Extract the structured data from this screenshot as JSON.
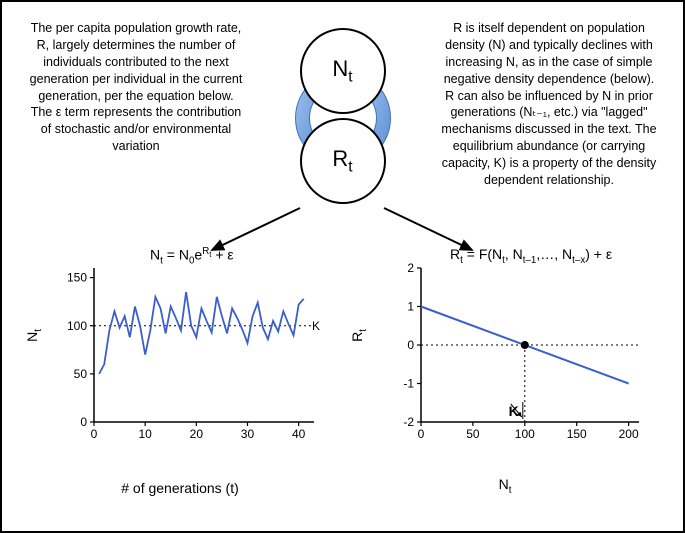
{
  "colors": {
    "line_blue": "#3a5fcd",
    "arrow_blue": "#5c8fd6",
    "arrow_blue_light": "#9cc0eb",
    "text": "#000000",
    "axis": "#000000",
    "dotted": "#000000",
    "bg": "#ffffff"
  },
  "left_text": "The per capita population growth rate, R, largely determines the number of individuals contributed to the next generation per individual in the current generation, per the equation below. The ε term represents the contribution of stochastic and/or environmental variation",
  "right_text": "R is itself dependent on population density (N) and typically declines with increasing N, as in the case of simple negative density dependence (below). R can also be influenced by N in prior generations (Nₜ₋₁, etc.) via \"lagged\" mechanisms discussed in the text. The equilibrium abundance (or carrying capacity, K) is a property of the density dependent relationship.",
  "diagram": {
    "top_label_main": "N",
    "top_label_sub": "t",
    "bot_label_main": "R",
    "bot_label_sub": "t"
  },
  "left_chart": {
    "type": "line",
    "equation_parts": {
      "lhs": "N",
      "lhs_sub": "t",
      "eq": " = N",
      "z": "0",
      "e": "e",
      "exp": "R",
      "exp_sub": "t",
      "tail": " + ε"
    },
    "ylabel_main": "N",
    "ylabel_sub": "t",
    "xlabel": "# of generations (t)",
    "xlim": [
      0,
      43
    ],
    "ylim": [
      0,
      160
    ],
    "xticks": [
      0,
      10,
      20,
      30,
      40
    ],
    "yticks": [
      0,
      50,
      100,
      150
    ],
    "K_line": 100,
    "K_label": "K",
    "line_width": 1.8,
    "series_color": "#3a5fcd",
    "data": [
      [
        1,
        50
      ],
      [
        2,
        60
      ],
      [
        3,
        95
      ],
      [
        4,
        115
      ],
      [
        5,
        98
      ],
      [
        6,
        110
      ],
      [
        7,
        88
      ],
      [
        8,
        120
      ],
      [
        9,
        100
      ],
      [
        10,
        70
      ],
      [
        11,
        95
      ],
      [
        12,
        130
      ],
      [
        13,
        118
      ],
      [
        14,
        92
      ],
      [
        15,
        120
      ],
      [
        16,
        108
      ],
      [
        17,
        95
      ],
      [
        18,
        135
      ],
      [
        19,
        100
      ],
      [
        20,
        88
      ],
      [
        21,
        118
      ],
      [
        22,
        105
      ],
      [
        23,
        93
      ],
      [
        24,
        130
      ],
      [
        25,
        110
      ],
      [
        26,
        92
      ],
      [
        27,
        118
      ],
      [
        28,
        108
      ],
      [
        29,
        96
      ],
      [
        30,
        82
      ],
      [
        31,
        110
      ],
      [
        32,
        124
      ],
      [
        33,
        98
      ],
      [
        34,
        86
      ],
      [
        35,
        105
      ],
      [
        36,
        94
      ],
      [
        37,
        115
      ],
      [
        38,
        102
      ],
      [
        39,
        90
      ],
      [
        40,
        122
      ],
      [
        41,
        128
      ]
    ]
  },
  "right_chart": {
    "type": "line",
    "equation_parts": {
      "lhs": "R",
      "lhs_sub": "t",
      "mid": " = F(N",
      "s1": "t",
      "c1": ", N",
      "s2": "t–1",
      "c2": ",…, N",
      "s3": "t–x",
      "tail": ") + ε"
    },
    "ylabel_main": "R",
    "ylabel_sub": "t",
    "xlabel_main": "N",
    "xlabel_sub": "t",
    "xlim": [
      0,
      210
    ],
    "ylim": [
      -2,
      2
    ],
    "xticks": [
      0,
      50,
      100,
      150,
      200
    ],
    "yticks": [
      -2,
      -1,
      0,
      1,
      2
    ],
    "series_color": "#3a5fcd",
    "line_width": 2,
    "line": [
      [
        0,
        1
      ],
      [
        200,
        -1
      ]
    ],
    "K_point": [
      100,
      0
    ],
    "K_label": "K",
    "zero_line": 0
  },
  "fontsize": {
    "body": 12.5,
    "node": 22,
    "equation": 14,
    "axis_label": 14,
    "tick": 12
  }
}
